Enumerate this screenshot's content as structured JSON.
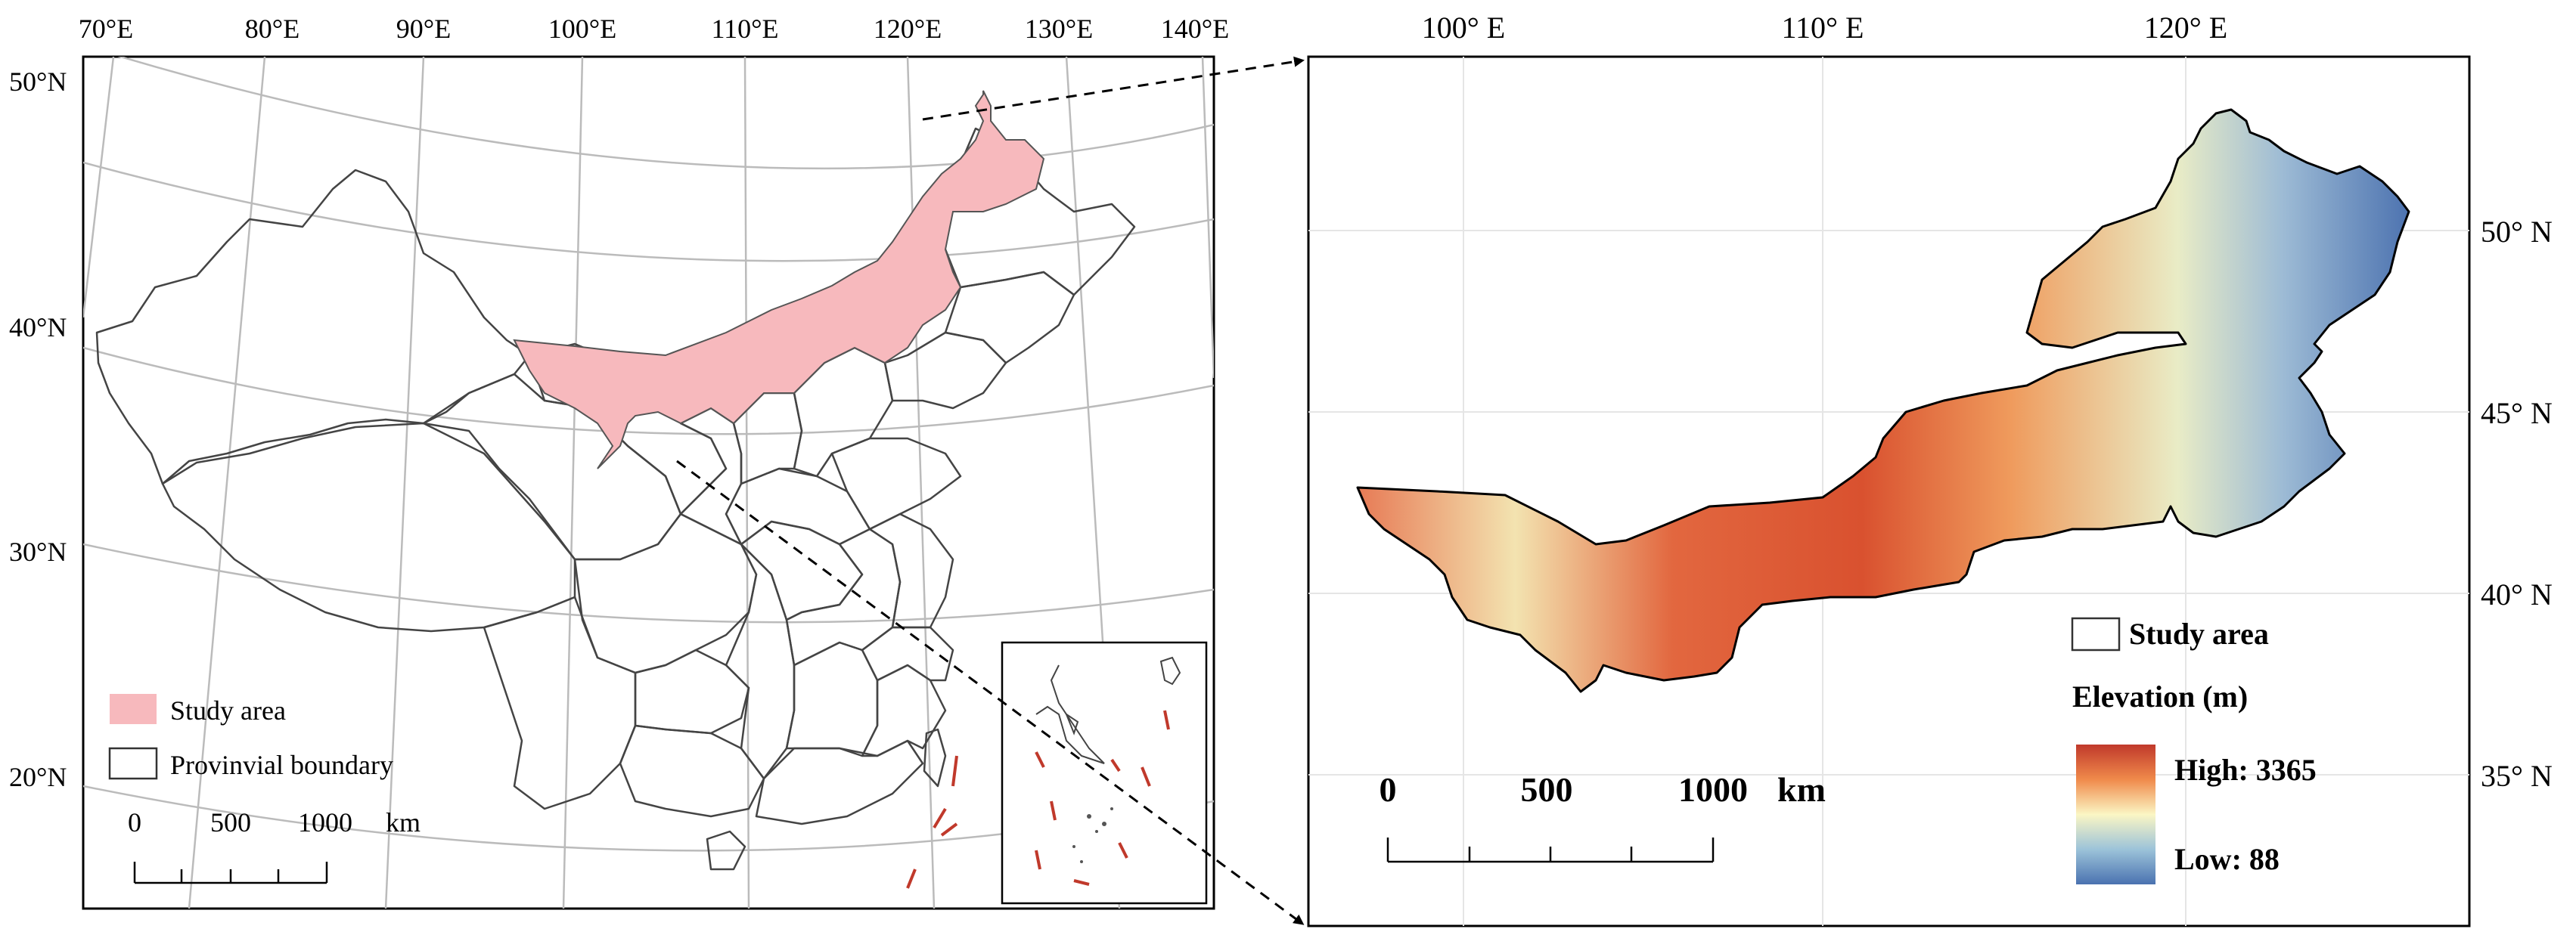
{
  "left_map": {
    "top_longitude_labels": [
      "70°E",
      "80°E",
      "90°E",
      "100°E",
      "110°E",
      "120°E",
      "130°E",
      "140°E"
    ],
    "left_latitude_labels": [
      "50°N",
      "40°N",
      "30°N",
      "20°N"
    ],
    "legend": {
      "study_area": "Study area",
      "provincial_boundary": "Provinvial boundary"
    },
    "scale_bar": {
      "labels": [
        "0",
        "500",
        "1000"
      ],
      "unit": "km"
    },
    "colors": {
      "study_area_fill": "#f7b9bd",
      "boundary": "#333333",
      "graticule": "#bbbbbb",
      "islands": "#c0392b"
    }
  },
  "right_map": {
    "top_longitude_labels": [
      "100° E",
      "110° E",
      "120° E"
    ],
    "right_latitude_labels": [
      "50° N",
      "45° N",
      "40° N",
      "35° N"
    ],
    "legend": {
      "study_area": "Study area",
      "elevation_title": "Elevation (m)",
      "high": "High: 3365",
      "low": "Low: 88"
    },
    "scale_bar": {
      "labels": [
        "0",
        "500",
        "1000"
      ],
      "unit": "km"
    },
    "colors": {
      "high": "#d73027",
      "mid": "#ffffbf",
      "low": "#4575b4"
    }
  }
}
